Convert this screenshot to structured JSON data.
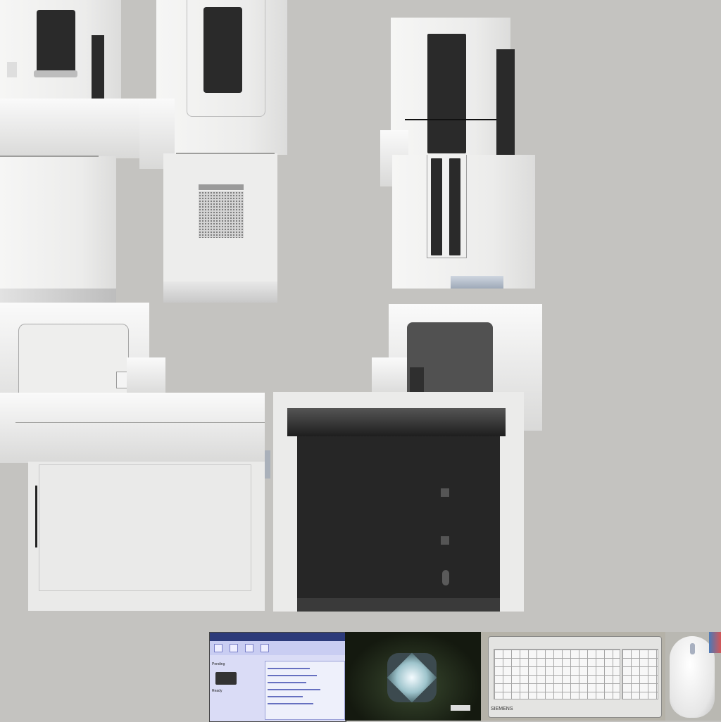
{
  "sheet": {
    "background_color": "#c4c3c0",
    "panel_color": "#f2f2f1",
    "dark_color": "#2a2a2a"
  },
  "thumbnails": {
    "screen": {
      "topbar": "",
      "label_1": "Pending",
      "label_2": "Ready"
    },
    "keyboard": {
      "brand": "SIEMENS"
    }
  }
}
